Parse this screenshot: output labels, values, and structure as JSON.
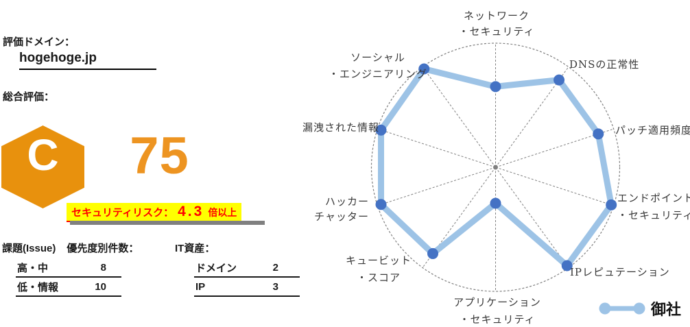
{
  "left_panel": {
    "domain_label": "評価ドメイン：",
    "domain_value": "hogehoge.jp",
    "overall_label": "総合評価：",
    "grade": "C",
    "score": "75",
    "risk": {
      "label": "セキュリティリスク：",
      "value": "4.3",
      "suffix": "倍以上"
    },
    "issues": {
      "title": "課題(Issue)",
      "subtitle": "優先度別件数：",
      "rows": [
        {
          "label": "高・中",
          "value": "8"
        },
        {
          "label": "低・情報",
          "value": "10"
        }
      ]
    },
    "assets": {
      "title": "IT資産：",
      "rows": [
        {
          "label": "ドメイン",
          "value": "2"
        },
        {
          "label": "IP",
          "value": "3"
        }
      ]
    }
  },
  "chart_data": {
    "type": "radar",
    "title": "",
    "categories": [
      "ネットワーク・セキュリティ",
      "DNSの正常性",
      "パッチ適用頻度",
      "エンドポイント・セキュリティ",
      "IPレピュテーション",
      "アプリケーション・セキュリティ",
      "キュービット・スコア",
      "ハッカーチャッター",
      "漏洩された情報",
      "ソーシャル・エンジニアリング"
    ],
    "axis_label_lines": [
      [
        "ネットワーク",
        "・セキュリティ"
      ],
      [
        "DNSの正常性"
      ],
      [
        "パッチ適用頻度"
      ],
      [
        "エンドポイント",
        "・セキュリティ"
      ],
      [
        "IPレピュテーション"
      ],
      [
        "アプリケーション",
        "・セキュリティ"
      ],
      [
        "キュービット",
        "・スコア"
      ],
      [
        "ハッカー",
        "チャッター"
      ],
      [
        "漏洩された情報"
      ],
      [
        "ソーシャル",
        "・エンジニアリング"
      ]
    ],
    "series": [
      {
        "name": "御社",
        "values": [
          65,
          87,
          87,
          98,
          98,
          29,
          86,
          97,
          97,
          98
        ]
      }
    ],
    "rmax": 100,
    "grid": {
      "outer_circle": "dashed",
      "spokes": "dashed",
      "rings": 0
    },
    "legend_position": "bottom-right"
  },
  "colors": {
    "accent_orange": "#E8910D",
    "score_orange": "#ED9421",
    "risk_bg": "#FFFF00",
    "risk_text": "#FF0000",
    "risk_underline": "#FF0000",
    "shadow_gray": "#808080",
    "series_line": "#9DC3E6",
    "series_dot": "#4472C4",
    "grid_gray": "#7F7F7F"
  }
}
